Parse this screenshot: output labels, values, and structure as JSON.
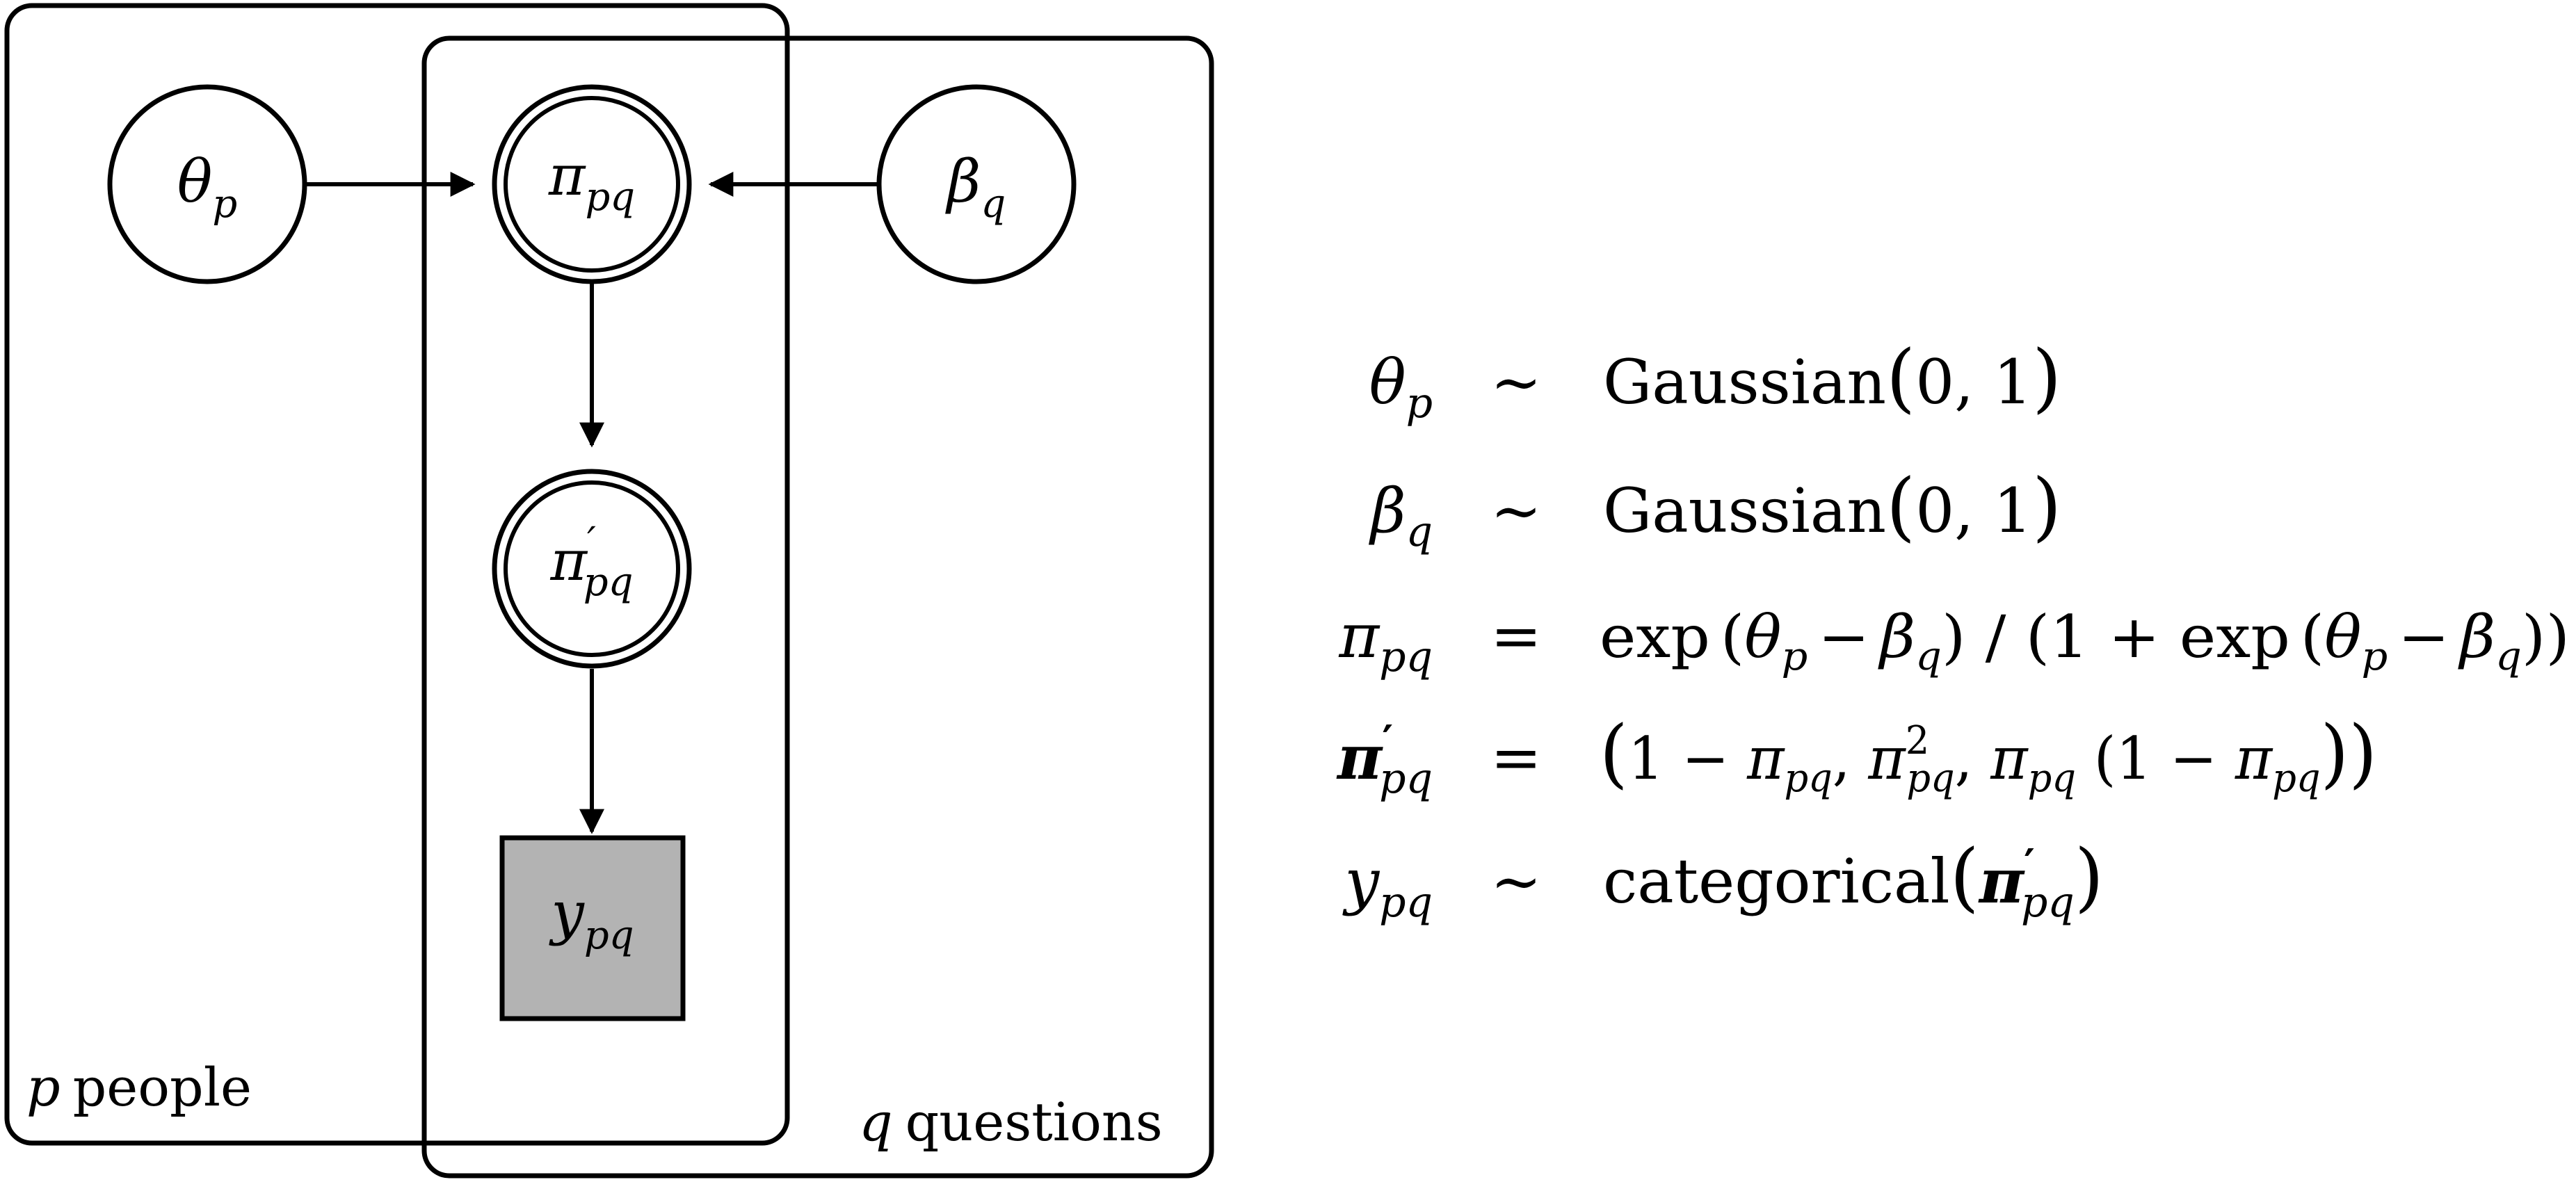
{
  "plates": {
    "people": {
      "var": "p",
      "label": "people"
    },
    "questions": {
      "var": "q",
      "label": "questions"
    }
  },
  "nodes": {
    "theta": {
      "base": "θ",
      "sub": "p",
      "kind": "latent"
    },
    "pi": {
      "base": "π",
      "sub": "pq",
      "kind": "deterministic"
    },
    "beta": {
      "base": "β",
      "sub": "q",
      "kind": "latent"
    },
    "pi_prime": {
      "base": "π",
      "prime": "′",
      "sub": "pq",
      "kind": "deterministic"
    },
    "y": {
      "base": "y",
      "sub": "pq",
      "kind": "observed"
    }
  },
  "colors": {
    "stroke": "#000000",
    "observed_fill": "#b3b3b3",
    "background": "#ffffff"
  },
  "equations": {
    "eq1": {
      "lhs_base": "θ",
      "lhs_sub": "p",
      "rel": "∼",
      "fn": "Gaussian",
      "open": "(",
      "args": "0, 1",
      "close": ")"
    },
    "eq2": {
      "lhs_base": "β",
      "lhs_sub": "q",
      "rel": "∼",
      "fn": "Gaussian",
      "open": "(",
      "args": "0, 1",
      "close": ")"
    },
    "eq3": {
      "lhs_base": "π",
      "lhs_sub": "pq",
      "rel": "=",
      "exp1": "exp",
      "paren_open": "(",
      "theta": "θ",
      "theta_sub": "p",
      "minus": "−",
      "beta": "β",
      "beta_sub": "q",
      "paren_close": ")",
      "slash": " / ",
      "open2": "(",
      "one": "1",
      "plus": " + ",
      "exp2": "exp",
      "paren_open2": "(",
      "theta2": "θ",
      "theta2_sub": "p",
      "minus2": "−",
      "beta2": "β",
      "beta2_sub": "q",
      "paren_close2": "))"
    },
    "eq4": {
      "lhs_base": "π",
      "lhs_prime": "′",
      "lhs_sub": "pq",
      "rel": "=",
      "open": "(",
      "one": "1",
      "minus": " − ",
      "pi1": "π",
      "pi1_sub": "pq",
      "comma1": ", ",
      "pi2": "π",
      "pi2_sup": "2",
      "pi2_sub": "pq",
      "comma2": ", ",
      "pi3": "π",
      "pi3_sub": "pq",
      "open_inner": " (",
      "one_inner": "1",
      "minus_inner": " − ",
      "pi4": "π",
      "pi4_sub": "pq",
      "close": "))"
    },
    "eq5": {
      "lhs_base": "y",
      "lhs_sub": "pq",
      "rel": "∼",
      "fn": "categorical",
      "open": "(",
      "arg_base": "π",
      "arg_prime": "′",
      "arg_sub": "pq",
      "close": ")"
    }
  }
}
